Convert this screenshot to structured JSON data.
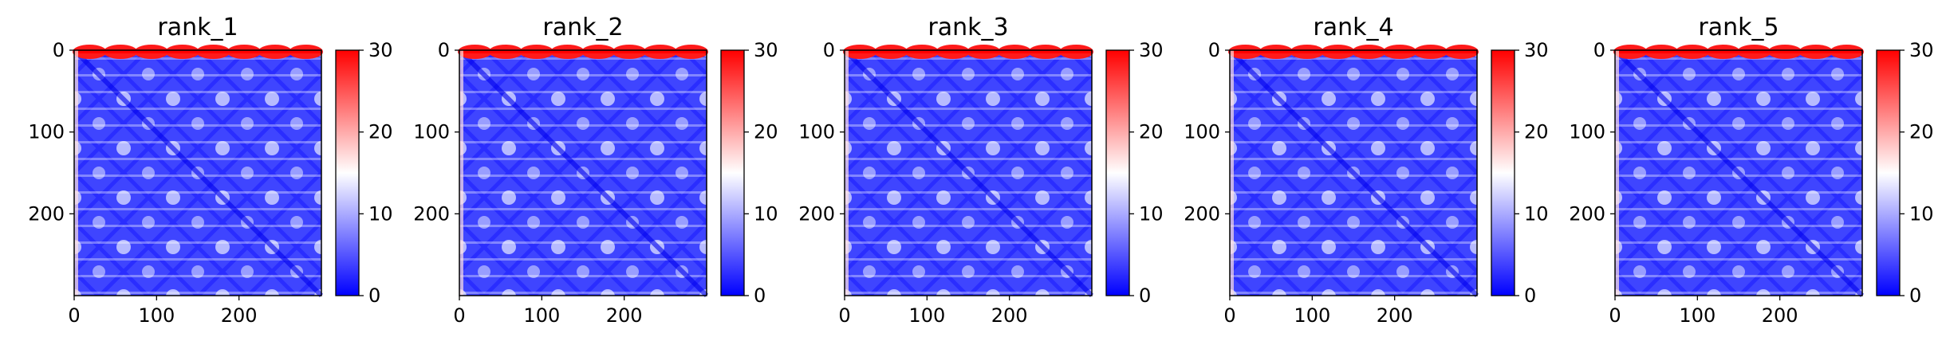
{
  "chart_data": [
    {
      "type": "heatmap",
      "title": "rank_1",
      "x_ticks": [
        0,
        100,
        200
      ],
      "y_ticks": [
        0,
        100,
        200
      ],
      "colorbar": {
        "ticks": [
          0,
          10,
          20,
          30
        ],
        "vmin": 0,
        "vmax": 30,
        "cmap": "bwr"
      },
      "size": 300,
      "grid": false
    },
    {
      "type": "heatmap",
      "title": "rank_2",
      "x_ticks": [
        0,
        100,
        200
      ],
      "y_ticks": [
        0,
        100,
        200
      ],
      "colorbar": {
        "ticks": [
          0,
          10,
          20,
          30
        ],
        "vmin": 0,
        "vmax": 30,
        "cmap": "bwr"
      },
      "size": 300,
      "grid": false
    },
    {
      "type": "heatmap",
      "title": "rank_3",
      "x_ticks": [
        0,
        100,
        200
      ],
      "y_ticks": [
        0,
        100,
        200
      ],
      "colorbar": {
        "ticks": [
          0,
          10,
          20,
          30
        ],
        "vmin": 0,
        "vmax": 30,
        "cmap": "bwr"
      },
      "size": 300,
      "grid": false
    },
    {
      "type": "heatmap",
      "title": "rank_4",
      "x_ticks": [
        0,
        100,
        200
      ],
      "y_ticks": [
        0,
        100,
        200
      ],
      "colorbar": {
        "ticks": [
          0,
          10,
          20,
          30
        ],
        "vmin": 0,
        "vmax": 30,
        "cmap": "bwr"
      },
      "size": 300,
      "grid": false
    },
    {
      "type": "heatmap",
      "title": "rank_5",
      "x_ticks": [
        0,
        100,
        200
      ],
      "y_ticks": [
        0,
        100,
        200
      ],
      "colorbar": {
        "ticks": [
          0,
          10,
          20,
          30
        ],
        "vmin": 0,
        "vmax": 30,
        "cmap": "bwr"
      },
      "size": 300,
      "grid": false
    }
  ],
  "colors": {
    "low": "#0000ff",
    "mid": "#ffffff",
    "high": "#ff0000",
    "axis": "#000000"
  }
}
